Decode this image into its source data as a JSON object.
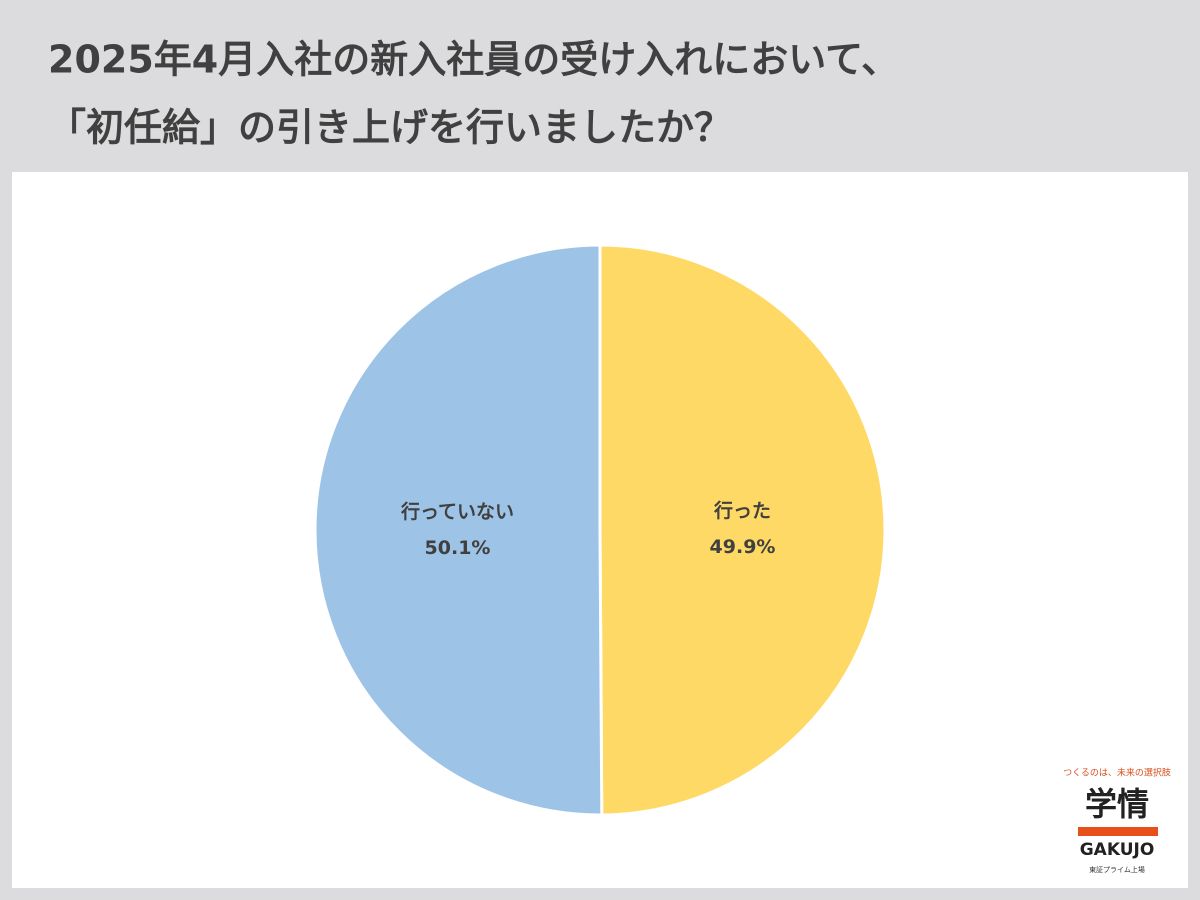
{
  "chart_data": {
    "type": "pie",
    "title": [
      "2025年4月入社の新入社員の受け入れにおいて、",
      "「初任給」の引き上げを行いましたか？"
    ],
    "categories": [
      "行った",
      "行っていない"
    ],
    "values": [
      49.9,
      50.1
    ],
    "value_labels": [
      "49.9%",
      "50.1%"
    ],
    "colors": [
      "#ffd966",
      "#9dc3e6"
    ]
  },
  "logo": {
    "tagline": "つくるのは、未来の選択肢",
    "name": "学情",
    "roman": "GAKUJO",
    "note": "東証プライム上場"
  }
}
